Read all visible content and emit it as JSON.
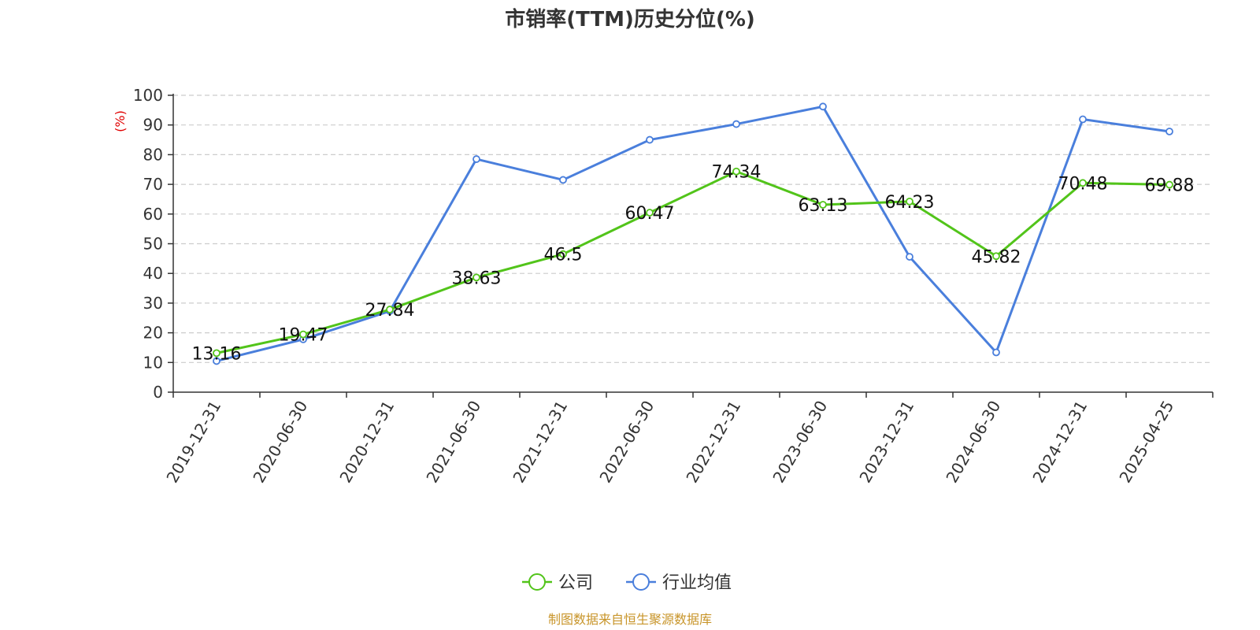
{
  "chart_data": {
    "type": "line",
    "title": "市销率(TTM)历史分位(%)",
    "ylabel": "(%)",
    "ylim": [
      0,
      100
    ],
    "yticks": [
      0,
      10,
      20,
      30,
      40,
      50,
      60,
      70,
      80,
      90,
      100
    ],
    "categories": [
      "2019-12-31",
      "2020-06-30",
      "2020-12-31",
      "2021-06-30",
      "2021-12-31",
      "2022-06-30",
      "2022-12-31",
      "2023-06-30",
      "2023-12-31",
      "2024-06-30",
      "2024-12-31",
      "2025-04-25"
    ],
    "grid": true,
    "legend_position": "bottom",
    "series": [
      {
        "name": "公司",
        "color": "#52c41a",
        "labeled": true,
        "values": [
          13.16,
          19.47,
          27.84,
          38.63,
          46.5,
          60.47,
          74.34,
          63.13,
          64.23,
          45.82,
          70.48,
          69.88
        ]
      },
      {
        "name": "行业均值",
        "color": "#4a7fdc",
        "labeled": false,
        "values": [
          10.5,
          17.8,
          27.3,
          78.5,
          71.5,
          85.0,
          90.3,
          96.2,
          45.6,
          13.4,
          91.9,
          87.8
        ]
      }
    ]
  },
  "footer": {
    "source": "制图数据来自恒生聚源数据库",
    "source_color": "#c8952a"
  },
  "ylabel_color": "#e00000"
}
